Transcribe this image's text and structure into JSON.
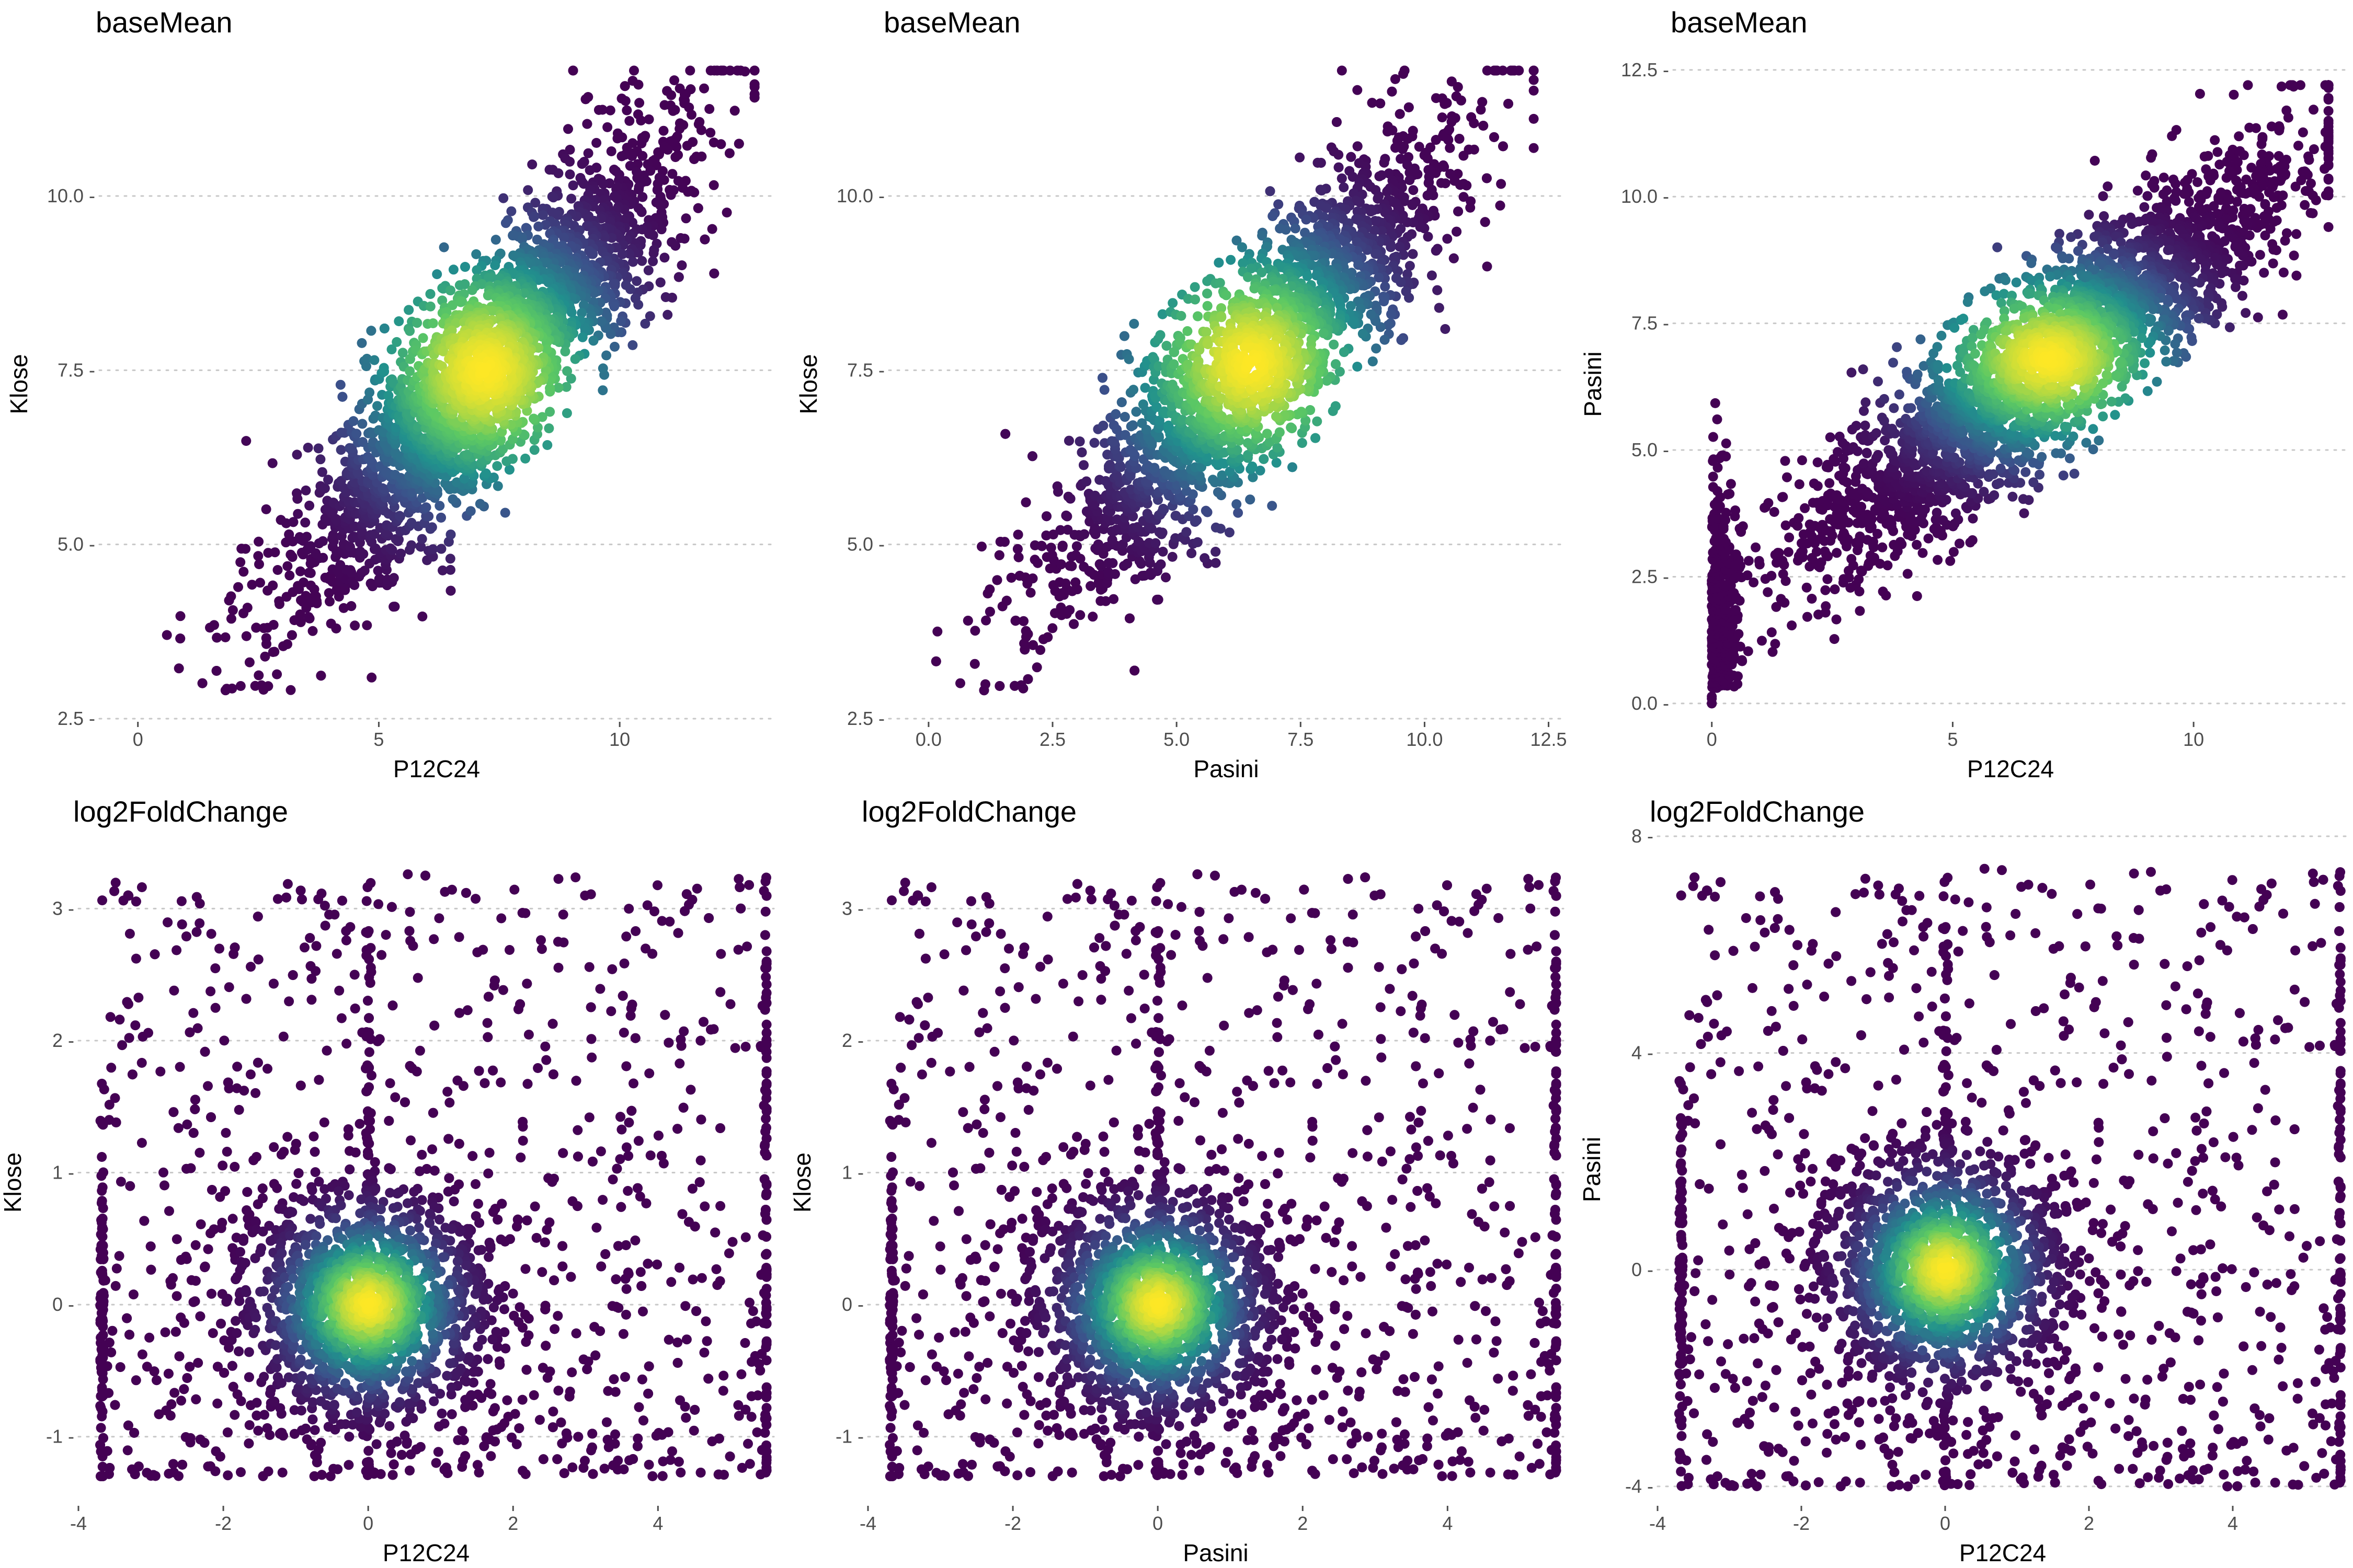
{
  "chart_data": [
    {
      "type": "scatter",
      "title": "baseMean",
      "xlabel": "P12C24",
      "ylabel": "Klose",
      "xlim": [
        -0.8,
        13.2
      ],
      "ylim": [
        2.5,
        12.1
      ],
      "x_ticks": [
        0,
        5,
        10
      ],
      "x_tick_labels": [
        "0",
        "5",
        "10"
      ],
      "y_ticks": [
        2.5,
        5.0,
        7.5,
        10.0
      ],
      "y_tick_labels": [
        "2.5 -",
        "5.0 -",
        "7.5 -",
        "10.0 -"
      ],
      "grid": "horizontal-dotted",
      "color_scale": "viridis-density",
      "density_center": [
        7.2,
        7.5
      ],
      "x_range": [
        0,
        12.8
      ],
      "y_range": [
        2.9,
        11.8
      ]
    },
    {
      "type": "scatter",
      "title": "baseMean",
      "xlabel": "Pasini",
      "ylabel": "Klose",
      "xlim": [
        -0.8,
        12.8
      ],
      "ylim": [
        2.5,
        12.1
      ],
      "x_ticks": [
        0.0,
        2.5,
        5.0,
        7.5,
        10.0,
        12.5
      ],
      "x_tick_labels": [
        "0.0",
        "2.5",
        "5.0",
        "7.5",
        "10.0",
        "12.5"
      ],
      "y_ticks": [
        2.5,
        5.0,
        7.5,
        10.0
      ],
      "y_tick_labels": [
        "2.5 -",
        "5.0 -",
        "7.5 -",
        "10.0 -"
      ],
      "grid": "horizontal-dotted",
      "color_scale": "viridis-density",
      "density_center": [
        6.5,
        7.6
      ],
      "x_range": [
        0,
        12.2
      ],
      "y_range": [
        2.9,
        11.8
      ]
    },
    {
      "type": "scatter",
      "title": "baseMean",
      "xlabel": "P12C24",
      "ylabel": "Pasini",
      "xlim": [
        -0.8,
        13.2
      ],
      "ylim": [
        -0.3,
        12.9
      ],
      "x_ticks": [
        0,
        5,
        10
      ],
      "x_tick_labels": [
        "0",
        "5",
        "10"
      ],
      "y_ticks": [
        0.0,
        2.5,
        5.0,
        7.5,
        10.0,
        12.5
      ],
      "y_tick_labels": [
        "0.0 -",
        "2.5 -",
        "5.0 -",
        "7.5 -",
        "10.0 -",
        "12.5 -"
      ],
      "grid": "horizontal-dotted",
      "color_scale": "viridis-density",
      "density_center": [
        7.0,
        6.8
      ],
      "x_range": [
        0,
        12.8
      ],
      "y_range": [
        0,
        12.2
      ]
    },
    {
      "type": "scatter",
      "title": "log2FoldChange",
      "xlabel": "P12C24",
      "ylabel": "Klose",
      "xlim": [
        -4.0,
        5.6
      ],
      "ylim": [
        -1.5,
        3.35
      ],
      "x_ticks": [
        -4,
        -2,
        0,
        2,
        4
      ],
      "x_tick_labels": [
        "-4",
        "-2",
        "0",
        "2",
        "4"
      ],
      "y_ticks": [
        -1,
        0,
        1,
        2,
        3
      ],
      "y_tick_labels": [
        "-1 -",
        "0 -",
        "1 -",
        "2 -",
        "3 -"
      ],
      "grid": "horizontal-dotted",
      "color_scale": "viridis-density",
      "density_center": [
        0.0,
        0.0
      ],
      "x_range": [
        -3.7,
        5.5
      ],
      "y_range": [
        -1.3,
        3.3
      ]
    },
    {
      "type": "scatter",
      "title": "log2FoldChange",
      "xlabel": "Pasini",
      "ylabel": "Klose",
      "xlim": [
        -4.0,
        5.6
      ],
      "ylim": [
        -1.5,
        3.35
      ],
      "x_ticks": [
        -4,
        -2,
        0,
        2,
        4
      ],
      "x_tick_labels": [
        "-4",
        "-2",
        "0",
        "2",
        "4"
      ],
      "y_ticks": [
        -1,
        0,
        1,
        2,
        3
      ],
      "y_tick_labels": [
        "-1 -",
        "0 -",
        "1 -",
        "2 -",
        "3 -"
      ],
      "grid": "horizontal-dotted",
      "color_scale": "viridis-density",
      "density_center": [
        0.0,
        0.0
      ],
      "x_range": [
        -3.7,
        5.5
      ],
      "y_range": [
        -1.3,
        3.3
      ]
    },
    {
      "type": "scatter",
      "title": "log2FoldChange",
      "xlabel": "P12C24",
      "ylabel": "Pasini",
      "xlim": [
        -4.0,
        5.6
      ],
      "ylim": [
        -4.3,
        8.0
      ],
      "x_ticks": [
        -4,
        -2,
        0,
        2,
        4
      ],
      "x_tick_labels": [
        "-4",
        "-2",
        "0",
        "2",
        "4"
      ],
      "y_ticks": [
        -4,
        0,
        4,
        8
      ],
      "y_tick_labels": [
        "-4 -",
        "0 -",
        "4 -",
        "8 -"
      ],
      "grid": "horizontal-dotted",
      "color_scale": "viridis-density",
      "density_center": [
        0.0,
        0.0
      ],
      "x_range": [
        -3.7,
        5.5
      ],
      "y_range": [
        -4.0,
        7.5
      ]
    }
  ],
  "colors": {
    "low_density": "#440154",
    "mid_low": "#3b528b",
    "mid": "#21908d",
    "mid_high": "#5dc963",
    "high_density": "#fde725"
  }
}
